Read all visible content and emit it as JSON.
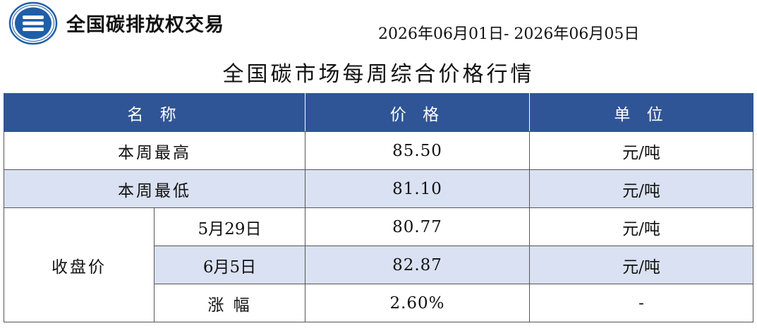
{
  "header": {
    "org_name": "全国碳排放权交易",
    "date_start": "2026年06月01日",
    "date_separator": "- ",
    "date_end": "2026年06月05日"
  },
  "title": "全国碳市场每周综合价格行情",
  "table": {
    "columns": [
      "名 称",
      "价 格",
      "单 位"
    ],
    "weekly_high": {
      "label": "本周最高",
      "price": "85.50",
      "unit": "元/吨"
    },
    "weekly_low": {
      "label": "本周最低",
      "price": "81.10",
      "unit": "元/吨"
    },
    "closing": {
      "label": "收盘价",
      "rows": [
        {
          "label": "5月29日",
          "price": "80.77",
          "unit": "元/吨"
        },
        {
          "label": "6月5日",
          "price": "82.87",
          "unit": "元/吨"
        },
        {
          "label": "涨 幅",
          "price": "2.60%",
          "unit": "-"
        }
      ]
    }
  },
  "colors": {
    "header_bg": "#2f5597",
    "shaded_row": "#d9e1f2",
    "logo_blue": "#1f5fa8"
  },
  "icons": {
    "logo": "exchange-logo-icon"
  }
}
